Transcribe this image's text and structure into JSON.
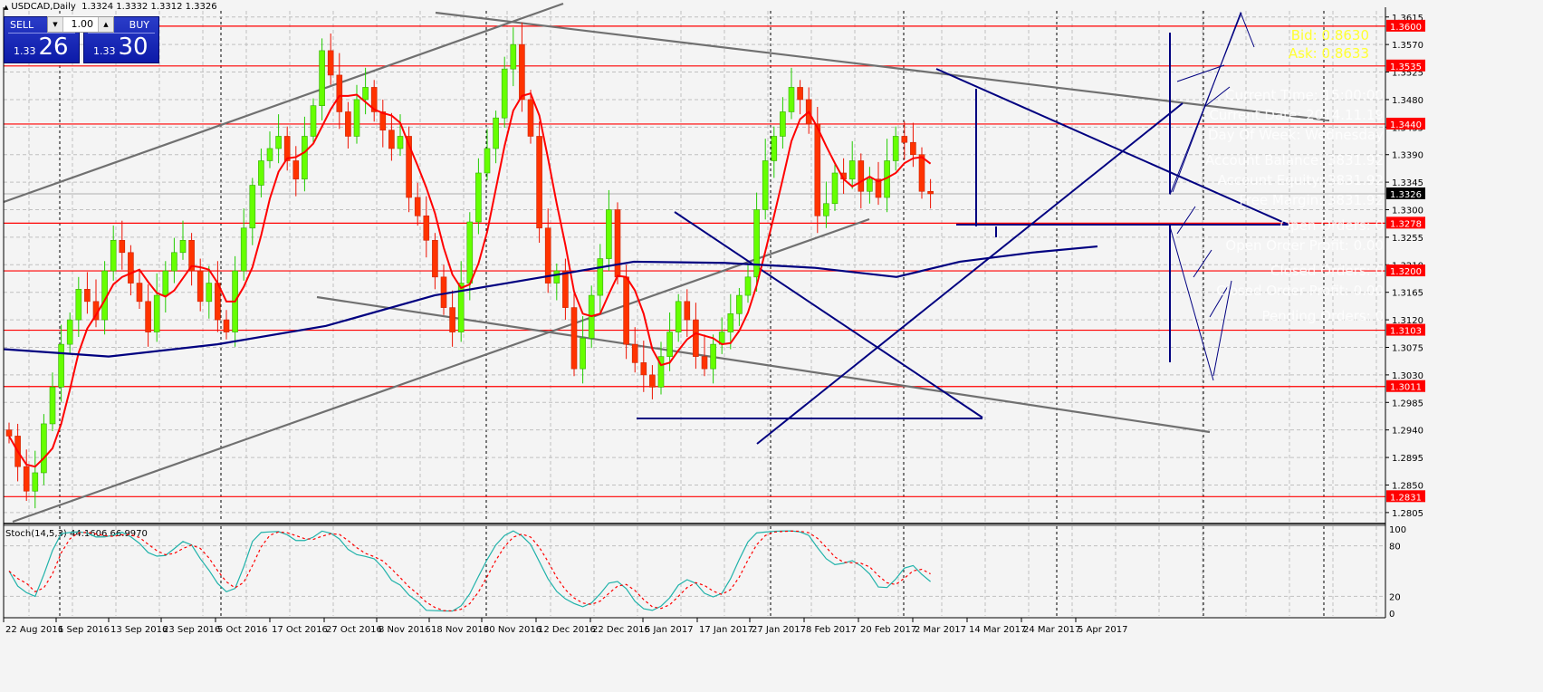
{
  "header": {
    "symbol_title": "USDCAD,Daily",
    "ohlc": "1.3324 1.3332 1.3312 1.3326"
  },
  "trade_panel": {
    "sell_label": "SELL",
    "buy_label": "BUY",
    "lot_value": "1.00",
    "sell_price_prefix": "1.33",
    "sell_price_big": "26",
    "buy_price_prefix": "1.33",
    "buy_price_big": "30"
  },
  "overlay": {
    "bid": "Bid: 0.8630",
    "ask": "Ask: 0.8633",
    "info_lines": [
      "Current Time: 15:00:00",
      "Current Date: 2014.11.19",
      "Day Of Week: Wednesday",
      "Account Balance: 3831.92",
      "Account Equity: 3831.92",
      "Free Margin: 3831.92",
      "Open Orders: 0",
      "Open Order Profit: 0.00",
      "Closed Orders: 0",
      "Closed Order Profit: 0.00",
      "Pending Orders: 0"
    ]
  },
  "colors": {
    "background": "#f4f4f4",
    "grid": "#c0c0c0",
    "bull_candle": "#66ff00",
    "bear_candle": "#ff3300",
    "level_line": "#ff0000",
    "ma_fast": "#ff0000",
    "ma_slow": "#000080",
    "trendline_blue": "#000080",
    "trendline_gray": "#707070",
    "stoch_main": "#20b2aa",
    "stoch_signal": "#ff0000",
    "current_price_tag": "#000000"
  },
  "chart_data": {
    "type": "candlestick",
    "title": "USDCAD,Daily",
    "price_axis": {
      "ticks": [
        "1.3615",
        "1.3570",
        "1.3525",
        "1.3480",
        "1.3435",
        "1.3390",
        "1.3345",
        "1.3300",
        "1.3255",
        "1.3210",
        "1.3165",
        "1.3120",
        "1.3075",
        "1.3030",
        "1.2985",
        "1.2940",
        "1.2895",
        "1.2850",
        "1.2805"
      ],
      "range": [
        1.279,
        1.3625
      ]
    },
    "horizontal_levels": [
      "1.3600",
      "1.3535",
      "1.3440",
      "1.3278",
      "1.3200",
      "1.3103",
      "1.3011",
      "1.2831"
    ],
    "current_price": "1.3326",
    "date_axis": [
      "22 Aug 2016",
      "1 Sep 2016",
      "13 Sep 2016",
      "23 Sep 2016",
      "5 Oct 2016",
      "17 Oct 2016",
      "27 Oct 2016",
      "8 Nov 2016",
      "18 Nov 2016",
      "30 Nov 2016",
      "12 Dec 2016",
      "22 Dec 2016",
      "5 Jan 2017",
      "17 Jan 2017",
      "27 Jan 2017",
      "8 Feb 2017",
      "20 Feb 2017",
      "2 Mar 2017",
      "14 Mar 2017",
      "24 Mar 2017",
      "5 Apr 2017"
    ],
    "indicator": {
      "name": "Stoch(14,5,3)",
      "main_value": "44.1606",
      "signal_value": "66.9970",
      "axis_ticks": [
        "100",
        "80",
        "20",
        "0"
      ]
    },
    "close_series_approx": [
      1.293,
      1.288,
      1.284,
      1.287,
      1.295,
      1.301,
      1.308,
      1.312,
      1.317,
      1.315,
      1.312,
      1.32,
      1.325,
      1.323,
      1.318,
      1.315,
      1.31,
      1.316,
      1.32,
      1.323,
      1.325,
      1.32,
      1.315,
      1.318,
      1.312,
      1.31,
      1.32,
      1.327,
      1.334,
      1.338,
      1.34,
      1.342,
      1.338,
      1.335,
      1.342,
      1.347,
      1.356,
      1.352,
      1.346,
      1.342,
      1.348,
      1.35,
      1.346,
      1.343,
      1.34,
      1.342,
      1.332,
      1.329,
      1.325,
      1.319,
      1.314,
      1.31,
      1.318,
      1.328,
      1.336,
      1.34,
      1.345,
      1.353,
      1.357,
      1.348,
      1.342,
      1.327,
      1.318,
      1.32,
      1.314,
      1.304,
      1.309,
      1.316,
      1.322,
      1.33,
      1.319,
      1.308,
      1.305,
      1.303,
      1.301,
      1.306,
      1.31,
      1.315,
      1.312,
      1.306,
      1.304,
      1.308,
      1.31,
      1.313,
      1.316,
      1.319,
      1.33,
      1.338,
      1.342,
      1.346,
      1.35,
      1.348,
      1.344,
      1.329,
      1.331,
      1.336,
      1.335,
      1.338,
      1.333,
      1.335,
      1.332,
      1.338,
      1.342,
      1.341,
      1.339,
      1.333,
      1.3326
    ]
  }
}
